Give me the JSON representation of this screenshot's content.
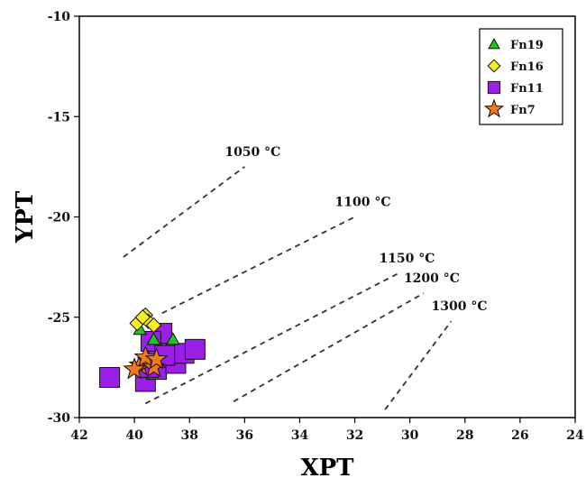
{
  "chart_data": {
    "type": "scatter",
    "xlabel": "XPT",
    "ylabel": "YPT",
    "xlim": [
      42,
      24
    ],
    "ylim": [
      -30,
      -10
    ],
    "x_reversed": true,
    "x_ticks": [
      42,
      40,
      38,
      36,
      34,
      32,
      30,
      28,
      26,
      24
    ],
    "y_ticks": [
      -10,
      -15,
      -20,
      -25,
      -30
    ],
    "grid": false,
    "legend_position": "top-right",
    "series": [
      {
        "name": "Fn19",
        "marker": "triangle",
        "color": "#22c322",
        "points": [
          [
            39.8,
            -25.6
          ],
          [
            39.3,
            -26.1
          ],
          [
            38.6,
            -26.1
          ]
        ]
      },
      {
        "name": "Fn16",
        "marker": "diamond",
        "color": "#f5ee22",
        "points": [
          [
            39.9,
            -25.3
          ],
          [
            39.6,
            -24.9
          ],
          [
            39.5,
            -25.2
          ],
          [
            39.3,
            -25.4
          ],
          [
            39.7,
            -25.0
          ]
        ]
      },
      {
        "name": "Fn11",
        "marker": "square",
        "color": "#9b1fe8",
        "points": [
          [
            40.9,
            -28.0
          ],
          [
            39.6,
            -28.2
          ],
          [
            39.2,
            -27.6
          ],
          [
            38.8,
            -27.0
          ],
          [
            38.5,
            -27.3
          ],
          [
            38.2,
            -26.8
          ],
          [
            37.8,
            -26.6
          ],
          [
            39.2,
            -26.6
          ],
          [
            39.0,
            -25.8
          ],
          [
            39.4,
            -26.2
          ],
          [
            38.9,
            -26.9
          ],
          [
            39.5,
            -27.5
          ]
        ]
      },
      {
        "name": "Fn7",
        "marker": "star",
        "color": "#f07820",
        "points": [
          [
            39.8,
            -27.4
          ],
          [
            39.5,
            -27.2
          ],
          [
            39.3,
            -27.5
          ],
          [
            39.6,
            -27.0
          ],
          [
            40.0,
            -27.6
          ],
          [
            39.2,
            -27.1
          ]
        ]
      }
    ],
    "isotherms": [
      {
        "label": "1050 °C",
        "from": [
          40.4,
          -22.0
        ],
        "to": [
          36.0,
          -17.5
        ]
      },
      {
        "label": "1100 °C",
        "from": [
          39.0,
          -24.8
        ],
        "to": [
          32.0,
          -20.0
        ]
      },
      {
        "label": "1150 °C",
        "from": [
          39.6,
          -29.3
        ],
        "to": [
          30.4,
          -22.8
        ]
      },
      {
        "label": "1200 °C",
        "from": [
          36.4,
          -29.2
        ],
        "to": [
          29.5,
          -23.8
        ]
      },
      {
        "label": "1300 °C",
        "from": [
          30.9,
          -29.6
        ],
        "to": [
          28.5,
          -25.2
        ]
      }
    ]
  }
}
